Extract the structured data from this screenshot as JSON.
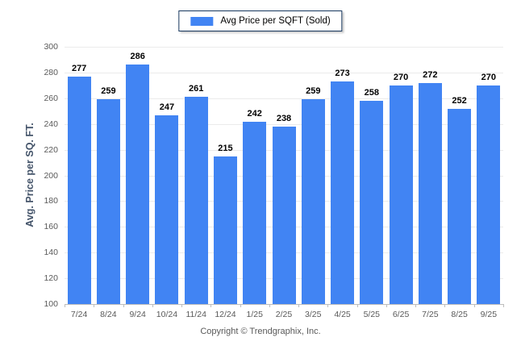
{
  "chart_data": {
    "type": "bar",
    "title": "",
    "legend": "Avg Price per SQFT (Sold)",
    "ylabel": "Avg. Price per SQ. FT.",
    "categories": [
      "7/24",
      "8/24",
      "9/24",
      "10/24",
      "11/24",
      "12/24",
      "1/25",
      "2/25",
      "3/25",
      "4/25",
      "5/25",
      "6/25",
      "7/25",
      "8/25",
      "9/25"
    ],
    "values": [
      277,
      259,
      286,
      247,
      261,
      215,
      242,
      238,
      259,
      273,
      258,
      270,
      272,
      252,
      270
    ],
    "ylim": [
      100,
      300
    ],
    "ytick_step": 20,
    "grid": "horizontal",
    "legend_position": "top-center",
    "bar_color": "#4184F3",
    "legend_border_color": "#17375E",
    "footer": "Copyright © Trendgraphix, Inc."
  }
}
